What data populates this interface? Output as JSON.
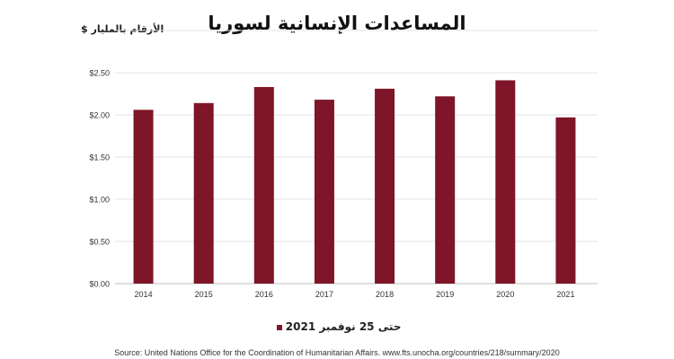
{
  "chart_data": {
    "type": "bar",
    "title": "المساعدات الإنسانية لسوريا",
    "unit_label": "الأرقام بالمليار $",
    "categories": [
      "2014",
      "2015",
      "2016",
      "2017",
      "2018",
      "2019",
      "2020",
      "2021"
    ],
    "series": [
      {
        "name": "حتى 25 نوفمبر 2021",
        "values": [
          2.06,
          2.14,
          2.33,
          2.18,
          2.31,
          2.22,
          2.41,
          1.97
        ]
      }
    ],
    "ylim": [
      0,
      2.5
    ],
    "yticks": [
      "$0.00",
      "$0.50",
      "$1.00",
      "$1.50",
      "$2.00",
      "$2.50"
    ],
    "ytick_values": [
      0,
      0.5,
      1.0,
      1.5,
      2.0,
      2.5
    ],
    "grid": true,
    "legend_position": "bottom",
    "bar_color": "#7f1528"
  },
  "source": "Source: United Nations Office for the Coordination of Humanitarian Affairs. www.fts.unocha.org/countries/218/summary/2020"
}
